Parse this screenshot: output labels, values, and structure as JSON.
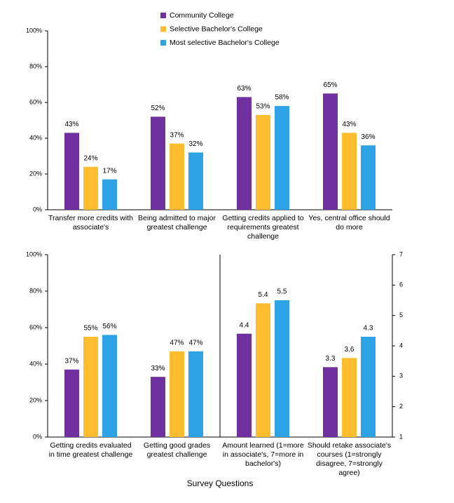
{
  "chart_data": [
    {
      "type": "bar",
      "categories": [
        "Transfer more credits with associate's",
        "Being admitted to major greatest challenge",
        "Getting credits applied to requirements greatest challenge",
        "Yes, central office should do more"
      ],
      "series": [
        {
          "name": "Community College",
          "color": "#7030a0",
          "values": [
            43,
            52,
            63,
            65
          ],
          "value_labels": [
            "43%",
            "52%",
            "63%",
            "65%"
          ]
        },
        {
          "name": "Selective Bachelor's College",
          "color": "#fdbd2e",
          "values": [
            24,
            37,
            53,
            43
          ],
          "value_labels": [
            "24%",
            "37%",
            "53%",
            "43%"
          ]
        },
        {
          "name": "Most selective Bachelor's College",
          "color": "#2da3e6",
          "values": [
            17,
            32,
            58,
            36
          ],
          "value_labels": [
            "17%",
            "32%",
            "58%",
            "36%"
          ]
        }
      ],
      "ylim": [
        0,
        100
      ],
      "yticks": [
        {
          "value": 0,
          "label": "0%"
        },
        {
          "value": 20,
          "label": "20%"
        },
        {
          "value": 40,
          "label": "40%"
        },
        {
          "value": 60,
          "label": "60%"
        },
        {
          "value": 80,
          "label": "80%"
        },
        {
          "value": 100,
          "label": "100%"
        }
      ],
      "legend": "top"
    },
    {
      "type": "bar",
      "xlabel": "Survey Questions",
      "categories": [
        "Getting credits evaluated in time greatest challenge",
        "Getting good grades greatest challenge"
      ],
      "series": [
        {
          "color": "#7030a0",
          "values": [
            37,
            33
          ],
          "value_labels": [
            "37%",
            "33%"
          ]
        },
        {
          "color": "#fdbd2e",
          "values": [
            55,
            47
          ],
          "value_labels": [
            "55%",
            "47%"
          ]
        },
        {
          "color": "#2da3e6",
          "values": [
            56,
            47
          ],
          "value_labels": [
            "56%",
            "47%"
          ]
        }
      ],
      "ylim": [
        0,
        100
      ],
      "yticks": [
        {
          "value": 0,
          "label": "0%"
        },
        {
          "value": 20,
          "label": "20%"
        },
        {
          "value": 40,
          "label": "40%"
        },
        {
          "value": 60,
          "label": "60%"
        },
        {
          "value": 80,
          "label": "80%"
        },
        {
          "value": 100,
          "label": "100%"
        }
      ]
    },
    {
      "type": "bar",
      "categories": [
        "Amount learned (1=more in associate's, 7=more in bachelor's)",
        "Should retake associate's courses (1=strongly disagree, 7=strongly agree)"
      ],
      "series": [
        {
          "color": "#7030a0",
          "values": [
            4.4,
            3.3
          ],
          "axis": "y2"
        },
        {
          "color": "#fdbd2e",
          "values": [
            5.4,
            3.6
          ],
          "axis": "y2"
        },
        {
          "color": "#2da3e6",
          "values": [
            5.5,
            4.3
          ],
          "axis": "y2"
        }
      ],
      "y2lim": [
        1,
        7
      ],
      "y2ticks": [
        1,
        2,
        3,
        4,
        5,
        6,
        7
      ]
    }
  ]
}
